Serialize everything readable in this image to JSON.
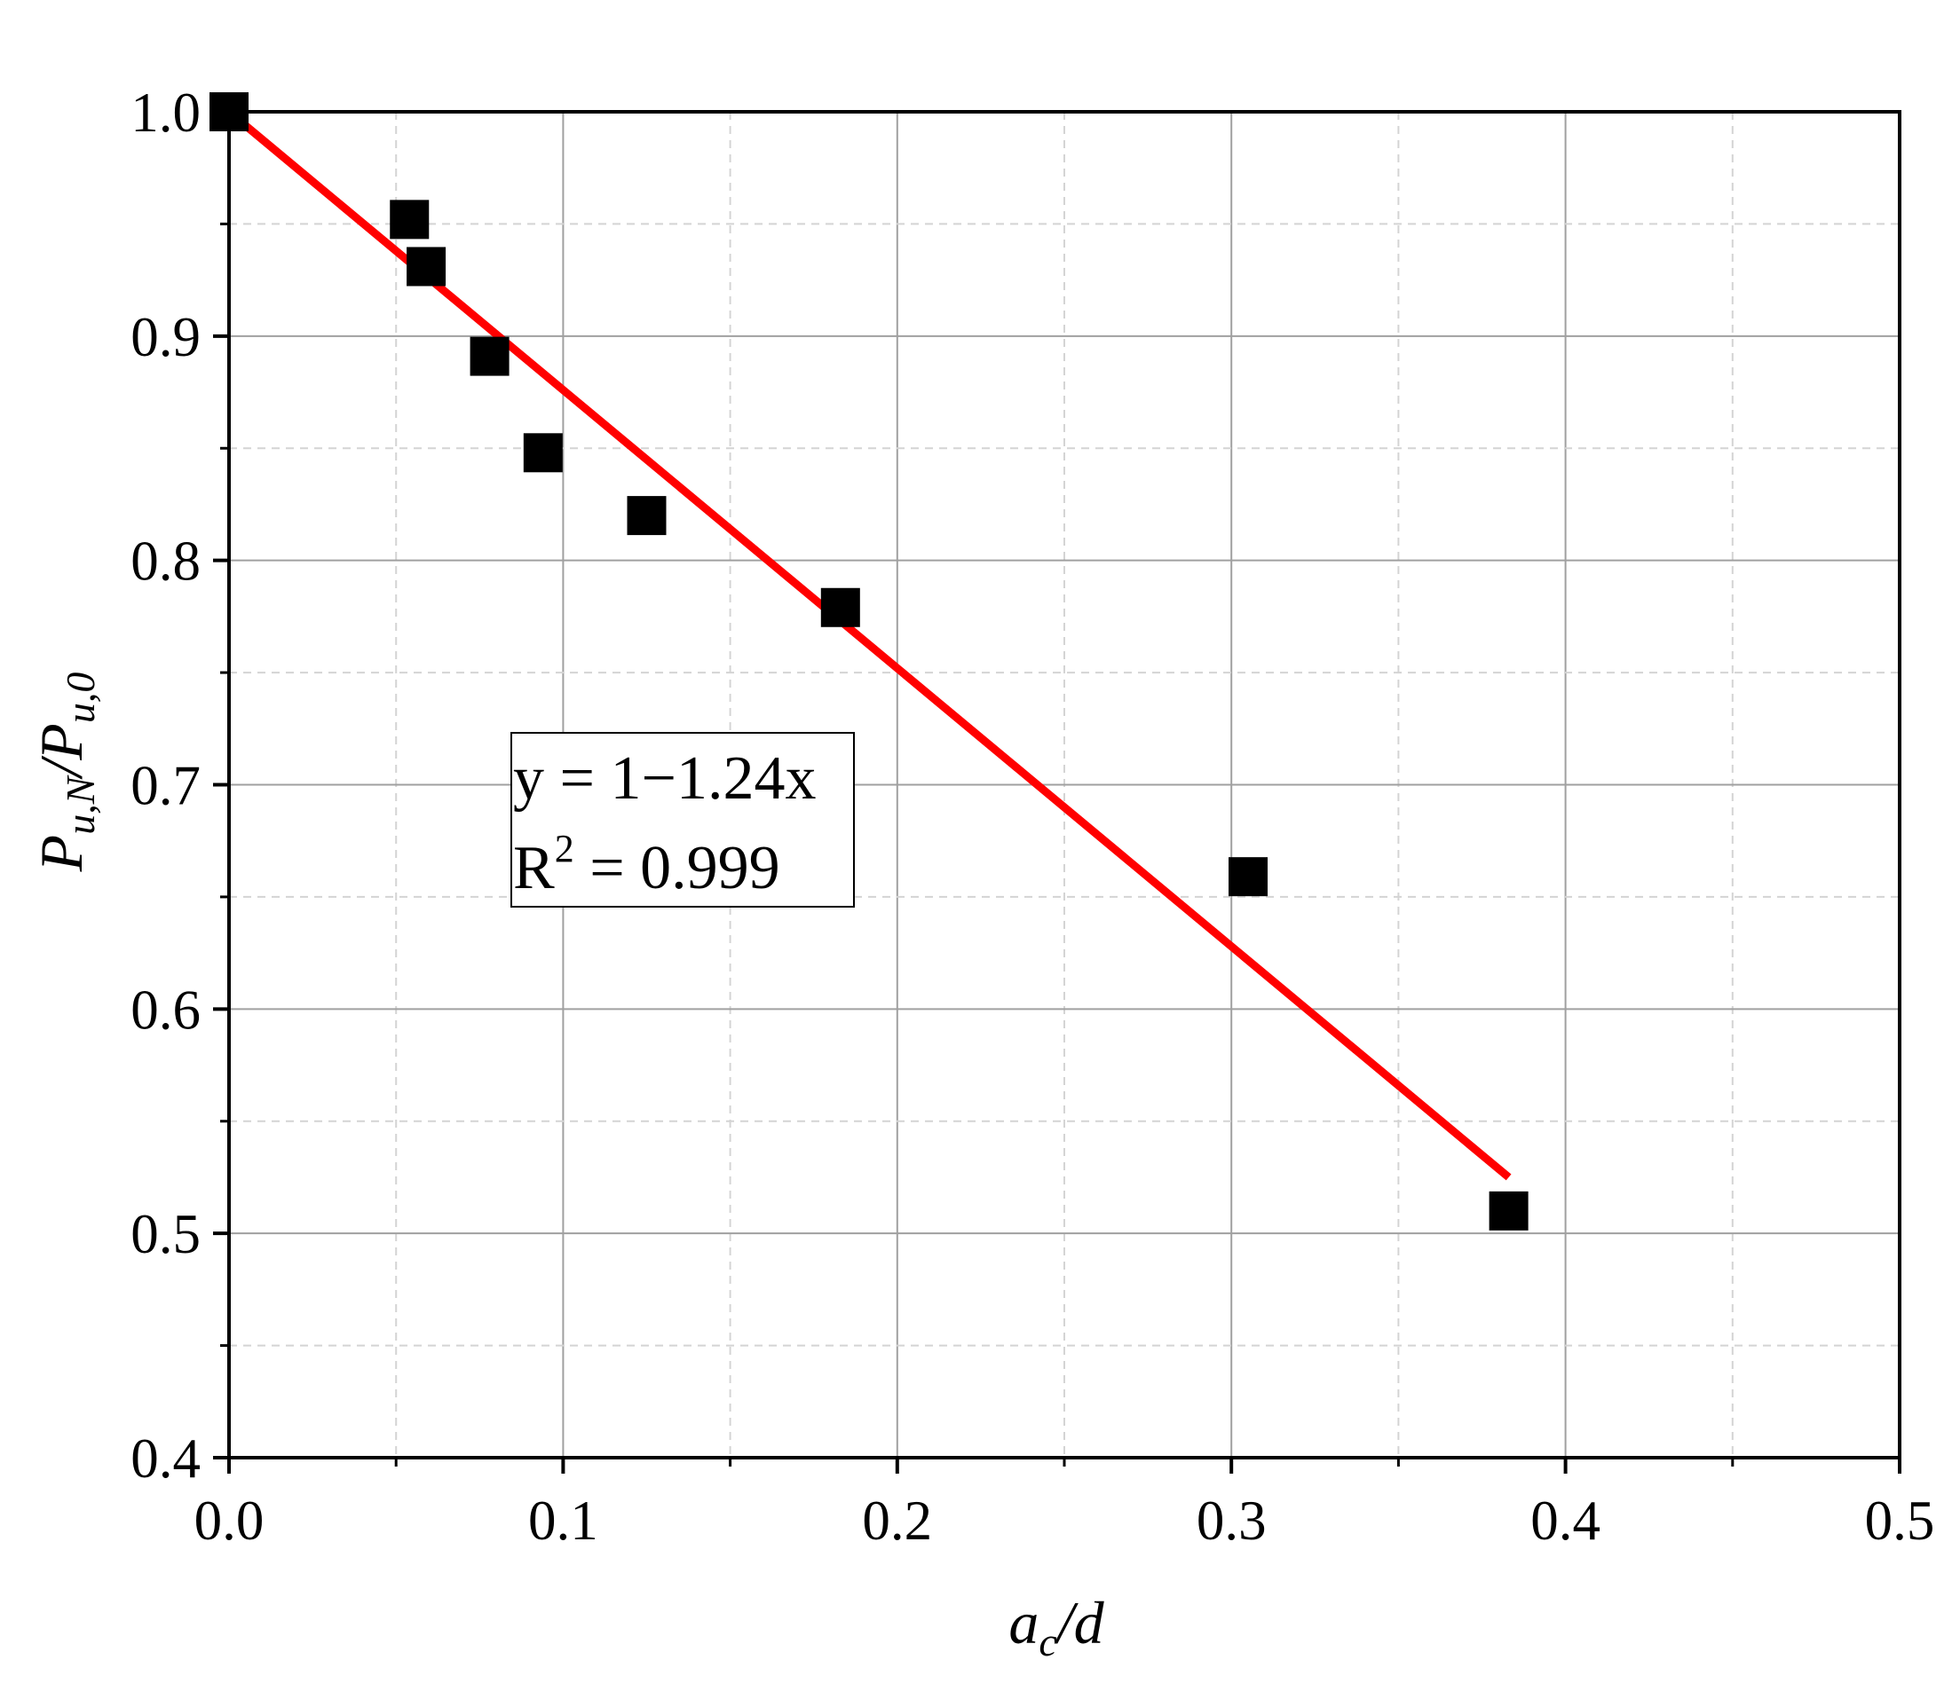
{
  "chart_data": {
    "type": "scatter",
    "xlabel": {
      "main": "a",
      "sub": "c",
      "rest": "/d"
    },
    "ylabel": {
      "p1": "P",
      "s1": "u,N",
      "slash": "/",
      "p2": "P",
      "s2": "u,0"
    },
    "xlim": [
      0.0,
      0.5
    ],
    "ylim": [
      0.4,
      1.0
    ],
    "x_ticks": [
      "0.0",
      "0.1",
      "0.2",
      "0.3",
      "0.4",
      "0.5"
    ],
    "y_ticks": [
      "0.4",
      "0.5",
      "0.6",
      "0.7",
      "0.8",
      "0.9",
      "1.0"
    ],
    "grid": true,
    "series": [
      {
        "type": "scatter",
        "marker": "square",
        "color": "#000000",
        "x": [
          0.0,
          0.054,
          0.059,
          0.078,
          0.094,
          0.125,
          0.183,
          0.305,
          0.383
        ],
        "y": [
          1.0,
          0.952,
          0.931,
          0.891,
          0.848,
          0.82,
          0.779,
          0.659,
          0.51
        ]
      },
      {
        "type": "line",
        "color": "#ff0000",
        "x": [
          0.0,
          0.383
        ],
        "y": [
          1.0,
          0.525
        ]
      }
    ],
    "annotation": {
      "equation": "y = 1−1.24x",
      "r2_prefix": "R",
      "r2_sup": "2",
      "r2_value": " = 0.999"
    }
  }
}
